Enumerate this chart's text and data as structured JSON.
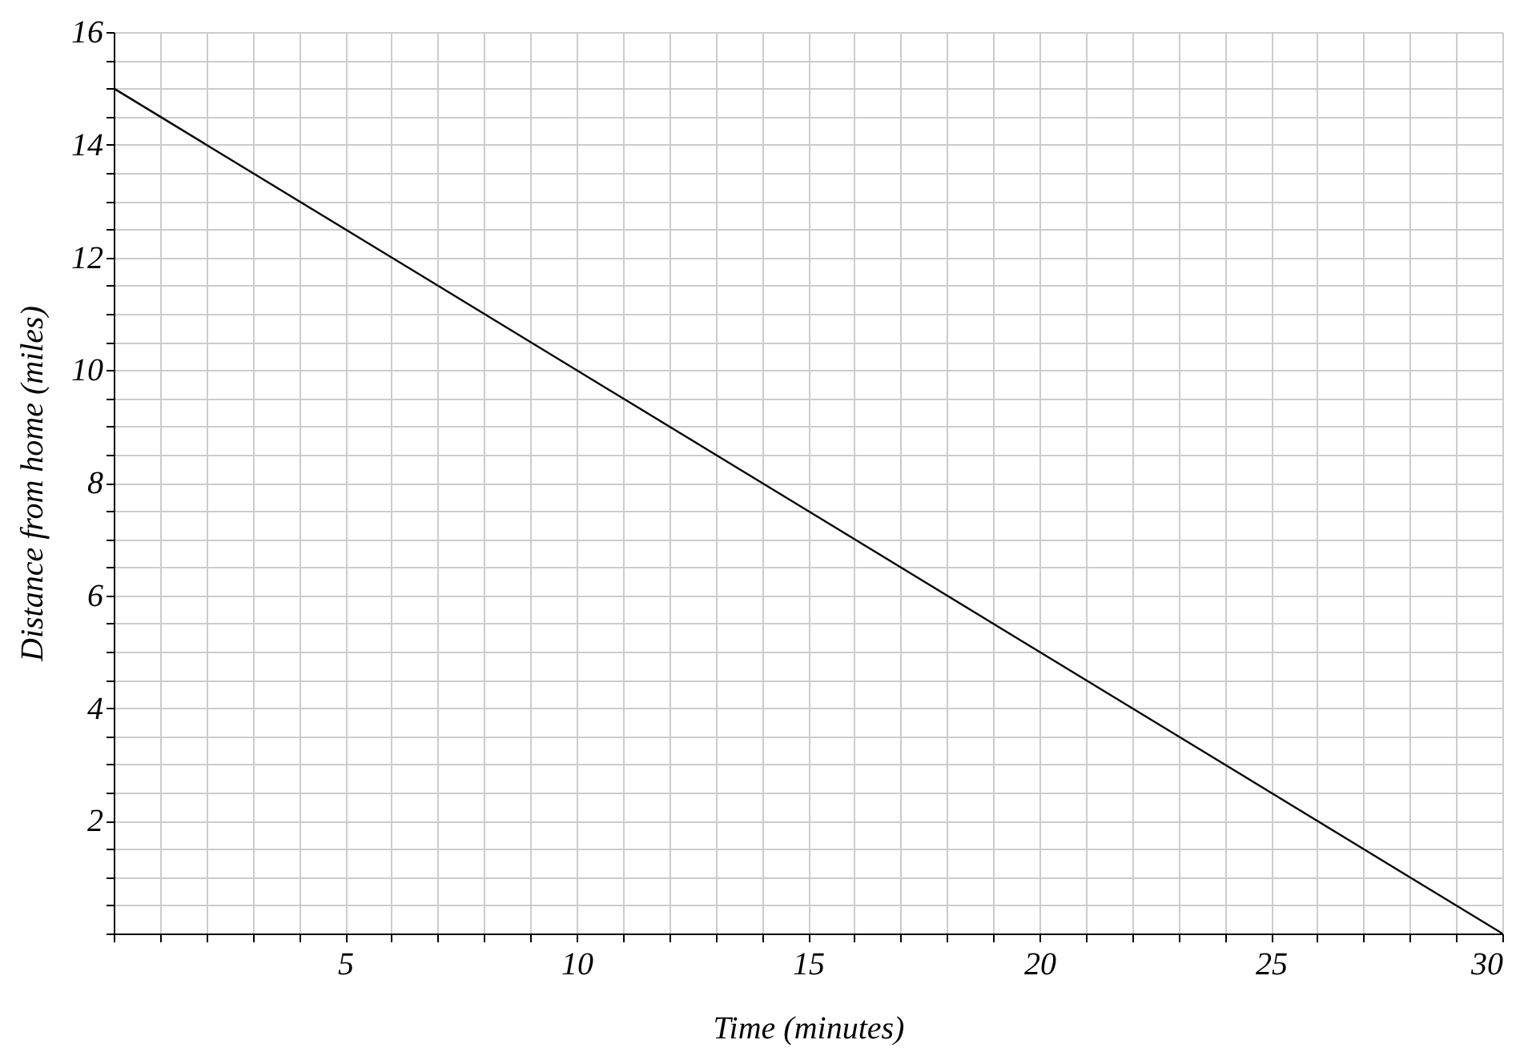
{
  "chart_data": {
    "type": "line",
    "xlabel": "Time (minutes)",
    "ylabel": "Distance from home (miles)",
    "x": [
      0,
      30
    ],
    "series": [
      {
        "color": "#000000",
        "values": [
          15,
          0
        ]
      }
    ],
    "xlim": [
      0,
      30
    ],
    "ylim": [
      0,
      16
    ],
    "xticks": [
      {
        "value": 0,
        "label": null
      },
      {
        "value": 1,
        "label": null
      },
      {
        "value": 2,
        "label": null
      },
      {
        "value": 3,
        "label": null
      },
      {
        "value": 4,
        "label": null
      },
      5,
      {
        "value": 6,
        "label": null
      },
      {
        "value": 7,
        "label": null
      },
      {
        "value": 8,
        "label": null
      },
      {
        "value": 9,
        "label": null
      },
      10,
      {
        "value": 11,
        "label": null
      },
      {
        "value": 12,
        "label": null
      },
      {
        "value": 13,
        "label": null
      },
      {
        "value": 14,
        "label": null
      },
      15,
      {
        "value": 16,
        "label": null
      },
      {
        "value": 17,
        "label": null
      },
      {
        "value": 18,
        "label": null
      },
      {
        "value": 19,
        "label": null
      },
      20,
      {
        "value": 21,
        "label": null
      },
      {
        "value": 22,
        "label": null
      },
      {
        "value": 23,
        "label": null
      },
      {
        "value": 24,
        "label": null
      },
      25,
      {
        "value": 26,
        "label": null
      },
      {
        "value": 27,
        "label": null
      },
      {
        "value": 28,
        "label": null
      },
      {
        "value": 29,
        "label": null
      },
      30
    ],
    "yticks": [
      {
        "value": 0,
        "label": null
      },
      {
        "value": 0.5,
        "label": null
      },
      {
        "value": 1,
        "label": null
      },
      {
        "value": 1.5,
        "label": null
      },
      2,
      {
        "value": 2.5,
        "label": null
      },
      {
        "value": 3,
        "label": null
      },
      {
        "value": 3.5,
        "label": null
      },
      4,
      {
        "value": 4.5,
        "label": null
      },
      {
        "value": 5,
        "label": null
      },
      {
        "value": 5.5,
        "label": null
      },
      6,
      {
        "value": 6.5,
        "label": null
      },
      {
        "value": 7,
        "label": null
      },
      {
        "value": 7.5,
        "label": null
      },
      8,
      {
        "value": 8.5,
        "label": null
      },
      {
        "value": 9,
        "label": null
      },
      {
        "value": 9.5,
        "label": null
      },
      10,
      {
        "value": 10.5,
        "label": null
      },
      {
        "value": 11,
        "label": null
      },
      {
        "value": 11.5,
        "label": null
      },
      12,
      {
        "value": 12.5,
        "label": null
      },
      {
        "value": 13,
        "label": null
      },
      {
        "value": 13.5,
        "label": null
      },
      14,
      {
        "value": 14.5,
        "label": null
      },
      {
        "value": 15,
        "label": null
      },
      {
        "value": 15.5,
        "label": null
      },
      16
    ],
    "grid": true,
    "marker": "none",
    "line_style": "solid"
  }
}
